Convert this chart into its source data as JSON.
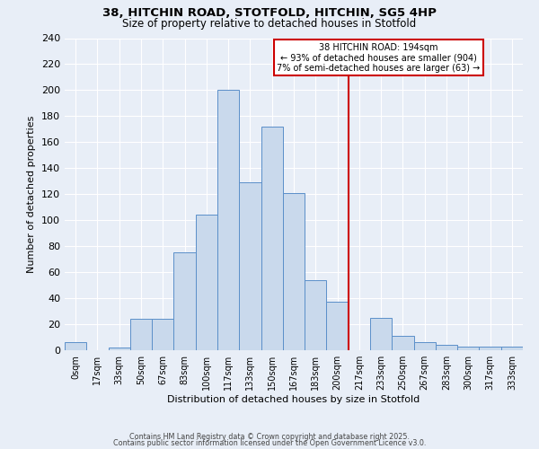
{
  "title_line1": "38, HITCHIN ROAD, STOTFOLD, HITCHIN, SG5 4HP",
  "title_line2": "Size of property relative to detached houses in Stotfold",
  "xlabel": "Distribution of detached houses by size in Stotfold",
  "ylabel": "Number of detached properties",
  "categories": [
    "0sqm",
    "17sqm",
    "33sqm",
    "50sqm",
    "67sqm",
    "83sqm",
    "100sqm",
    "117sqm",
    "133sqm",
    "150sqm",
    "167sqm",
    "183sqm",
    "200sqm",
    "217sqm",
    "233sqm",
    "250sqm",
    "267sqm",
    "283sqm",
    "300sqm",
    "317sqm",
    "333sqm"
  ],
  "values": [
    6,
    0,
    2,
    24,
    24,
    75,
    104,
    200,
    129,
    172,
    121,
    54,
    37,
    0,
    25,
    11,
    6,
    4,
    3,
    3,
    3
  ],
  "bar_color": "#c9d9ec",
  "bar_edge_color": "#5b8fc9",
  "background_color": "#e8eef7",
  "grid_color": "#ffffff",
  "vline_x": 12.5,
  "vline_color": "#cc0000",
  "annotation_box_text": "38 HITCHIN ROAD: 194sqm\n← 93% of detached houses are smaller (904)\n7% of semi-detached houses are larger (63) →",
  "footer_line1": "Contains HM Land Registry data © Crown copyright and database right 2025.",
  "footer_line2": "Contains public sector information licensed under the Open Government Licence v3.0.",
  "ylim": [
    0,
    240
  ],
  "yticks": [
    0,
    20,
    40,
    60,
    80,
    100,
    120,
    140,
    160,
    180,
    200,
    220,
    240
  ]
}
